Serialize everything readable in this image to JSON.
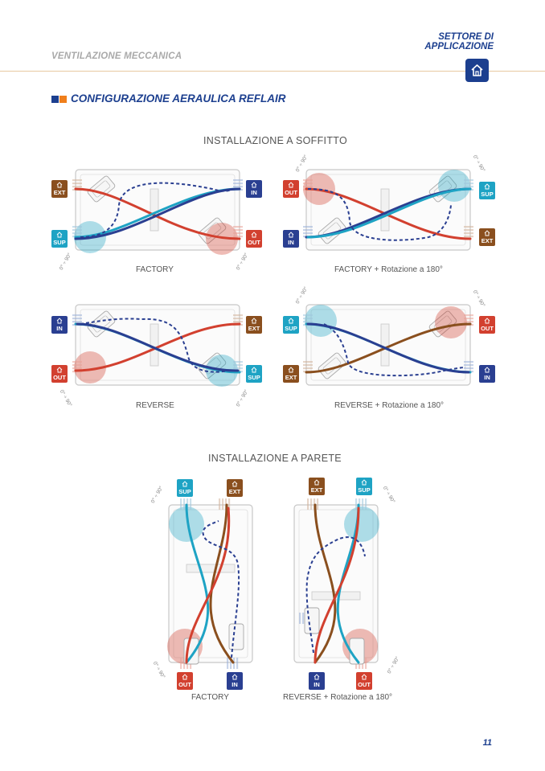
{
  "header": {
    "left_text": "VENTILAZIONE MECCANICA",
    "right_line1": "SETTORE DI",
    "right_line2": "APPLICAZIONE",
    "home_icon": "house-icon"
  },
  "title": {
    "text": "CONFIGURAZIONE AERAULICA REFLAIR",
    "square_colors": [
      "#1c3f8f",
      "#f07f1b"
    ]
  },
  "sections": {
    "ceiling": "INSTALLAZIONE A SOFFITTO",
    "wall": "INSTALLAZIONE A PARETE"
  },
  "captions": {
    "c1": "FACTORY",
    "c2": "FACTORY + Rotazione a 180°",
    "c3": "REVERSE",
    "c4": "REVERSE + Rotazione a 180°",
    "c5": "FACTORY",
    "c6": "REVERSE + Rotazione a 180°"
  },
  "badges": {
    "ext": "EXT",
    "in": "IN",
    "sup": "SUP",
    "out": "OUT"
  },
  "angle_label": "0° ÷ 90°",
  "colors": {
    "ext": "#8a4f1e",
    "in": "#2a3f91",
    "sup": "#1ea3c4",
    "out": "#d2402f"
  },
  "page_number": "11"
}
